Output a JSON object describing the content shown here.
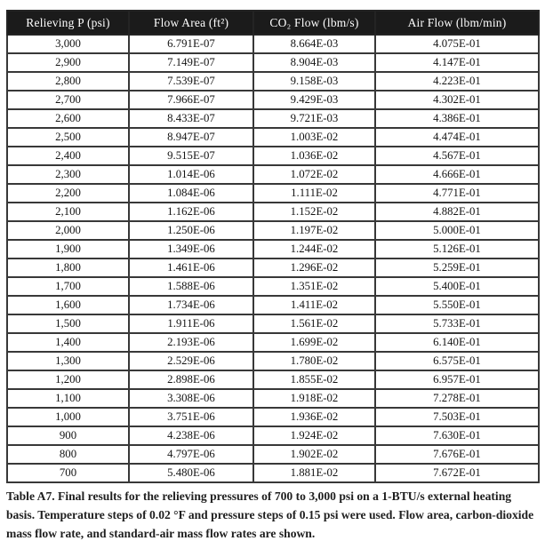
{
  "table": {
    "columns": [
      "Relieving P (psi)",
      "Flow Area (ft²)",
      "CO₂ Flow (lbm/s)",
      "Air Flow (lbm/min)"
    ],
    "rows": [
      [
        "3,000",
        "6.791E-07",
        "8.664E-03",
        "4.075E-01"
      ],
      [
        "2,900",
        "7.149E-07",
        "8.904E-03",
        "4.147E-01"
      ],
      [
        "2,800",
        "7.539E-07",
        "9.158E-03",
        "4.223E-01"
      ],
      [
        "2,700",
        "7.966E-07",
        "9.429E-03",
        "4.302E-01"
      ],
      [
        "2,600",
        "8.433E-07",
        "9.721E-03",
        "4.386E-01"
      ],
      [
        "2,500",
        "8.947E-07",
        "1.003E-02",
        "4.474E-01"
      ],
      [
        "2,400",
        "9.515E-07",
        "1.036E-02",
        "4.567E-01"
      ],
      [
        "2,300",
        "1.014E-06",
        "1.072E-02",
        "4.666E-01"
      ],
      [
        "2,200",
        "1.084E-06",
        "1.111E-02",
        "4.771E-01"
      ],
      [
        "2,100",
        "1.162E-06",
        "1.152E-02",
        "4.882E-01"
      ],
      [
        "2,000",
        "1.250E-06",
        "1.197E-02",
        "5.000E-01"
      ],
      [
        "1,900",
        "1.349E-06",
        "1.244E-02",
        "5.126E-01"
      ],
      [
        "1,800",
        "1.461E-06",
        "1.296E-02",
        "5.259E-01"
      ],
      [
        "1,700",
        "1.588E-06",
        "1.351E-02",
        "5.400E-01"
      ],
      [
        "1,600",
        "1.734E-06",
        "1.411E-02",
        "5.550E-01"
      ],
      [
        "1,500",
        "1.911E-06",
        "1.561E-02",
        "5.733E-01"
      ],
      [
        "1,400",
        "2.193E-06",
        "1.699E-02",
        "6.140E-01"
      ],
      [
        "1,300",
        "2.529E-06",
        "1.780E-02",
        "6.575E-01"
      ],
      [
        "1,200",
        "2.898E-06",
        "1.855E-02",
        "6.957E-01"
      ],
      [
        "1,100",
        "3.308E-06",
        "1.918E-02",
        "7.278E-01"
      ],
      [
        "1,000",
        "3.751E-06",
        "1.936E-02",
        "7.503E-01"
      ],
      [
        "900",
        "4.238E-06",
        "1.924E-02",
        "7.630E-01"
      ],
      [
        "800",
        "4.797E-06",
        "1.902E-02",
        "7.676E-01"
      ],
      [
        "700",
        "5.480E-06",
        "1.881E-02",
        "7.672E-01"
      ]
    ]
  },
  "caption": {
    "text": "Table A7. Final results for the relieving pressures of 700 to 3,000 psi on a 1-BTU/s external heating basis. Temperature steps of 0.02 °F and pressure steps of 0.15 psi were used. Flow area, carbon-dioxide mass flow rate, and standard-air mass flow rates are shown."
  },
  "colors": {
    "header_bg": "#1b1b1b",
    "header_text": "#ffffff",
    "border": "#383838",
    "body_text": "#141414",
    "page_bg": "#ffffff"
  }
}
